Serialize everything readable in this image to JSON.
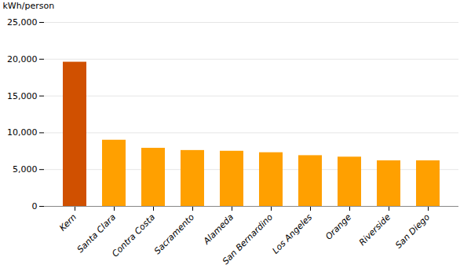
{
  "chart_data": {
    "type": "bar",
    "ylabel": "kWh/person",
    "categories": [
      "Kern",
      "Santa Clara",
      "Contra Costa",
      "Sacramento",
      "Alameda",
      "San Bernardino",
      "Los Angeles",
      "Orange",
      "Riverside",
      "San Diego"
    ],
    "values": [
      19600,
      9000,
      7900,
      7600,
      7500,
      7300,
      6900,
      6700,
      6200,
      6200
    ],
    "colors": [
      "#D05000",
      "#FFA000",
      "#FFA000",
      "#FFA000",
      "#FFA000",
      "#FFA000",
      "#FFA000",
      "#FFA000",
      "#FFA000",
      "#FFA000"
    ],
    "ylim": [
      0,
      25000
    ],
    "yticks": [
      0,
      {
        "value": 5000,
        "label": "5,000"
      },
      {
        "value": 10000,
        "label": "10,000"
      },
      {
        "value": 15000,
        "label": "15,000"
      },
      {
        "value": 20000,
        "label": "20,000"
      },
      {
        "value": 25000,
        "label": "25,000"
      }
    ],
    "grid": true
  }
}
